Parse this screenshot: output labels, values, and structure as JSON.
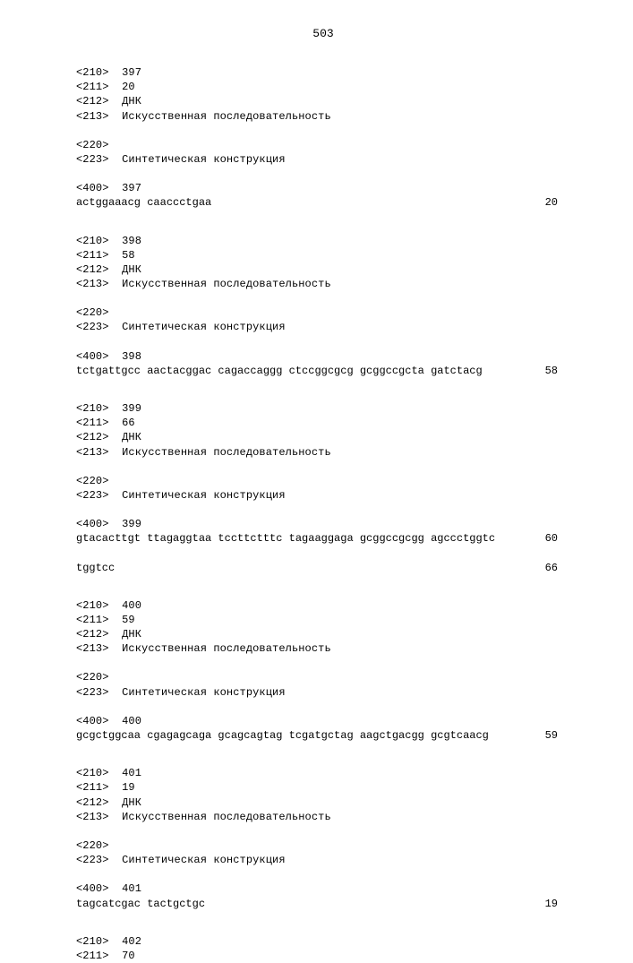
{
  "page_number": "503",
  "entries": [
    {
      "header": [
        {
          "tag": "<210>",
          "val": "397"
        },
        {
          "tag": "<211>",
          "val": "20"
        },
        {
          "tag": "<212>",
          "val": "ДНК"
        },
        {
          "tag": "<213>",
          "val": "Искусственная последовательность"
        }
      ],
      "feature": [
        {
          "tag": "<220>",
          "val": ""
        },
        {
          "tag": "<223>",
          "val": "Синтетическая конструкция"
        }
      ],
      "seq_tag": {
        "tag": "<400>",
        "val": "397"
      },
      "seq_lines": [
        {
          "text": "actggaaacg caaccctgaa",
          "num": "20"
        }
      ]
    },
    {
      "header": [
        {
          "tag": "<210>",
          "val": "398"
        },
        {
          "tag": "<211>",
          "val": "58"
        },
        {
          "tag": "<212>",
          "val": "ДНК"
        },
        {
          "tag": "<213>",
          "val": "Искусственная последовательность"
        }
      ],
      "feature": [
        {
          "tag": "<220>",
          "val": ""
        },
        {
          "tag": "<223>",
          "val": "Синтетическая конструкция"
        }
      ],
      "seq_tag": {
        "tag": "<400>",
        "val": "398"
      },
      "seq_lines": [
        {
          "text": "tctgattgcc aactacggac cagaccaggg ctccggcgcg gcggccgcta gatctacg",
          "num": "58"
        }
      ]
    },
    {
      "header": [
        {
          "tag": "<210>",
          "val": "399"
        },
        {
          "tag": "<211>",
          "val": "66"
        },
        {
          "tag": "<212>",
          "val": "ДНК"
        },
        {
          "tag": "<213>",
          "val": "Искусственная последовательность"
        }
      ],
      "feature": [
        {
          "tag": "<220>",
          "val": ""
        },
        {
          "tag": "<223>",
          "val": "Синтетическая конструкция"
        }
      ],
      "seq_tag": {
        "tag": "<400>",
        "val": "399"
      },
      "seq_lines": [
        {
          "text": "gtacacttgt ttagaggtaa tccttctttc tagaaggaga gcggccgcgg agccctggtc",
          "num": "60"
        },
        {
          "text": "tggtcc",
          "num": "66"
        }
      ]
    },
    {
      "header": [
        {
          "tag": "<210>",
          "val": "400"
        },
        {
          "tag": "<211>",
          "val": "59"
        },
        {
          "tag": "<212>",
          "val": "ДНК"
        },
        {
          "tag": "<213>",
          "val": "Искусственная последовательность"
        }
      ],
      "feature": [
        {
          "tag": "<220>",
          "val": ""
        },
        {
          "tag": "<223>",
          "val": "Синтетическая конструкция"
        }
      ],
      "seq_tag": {
        "tag": "<400>",
        "val": "400"
      },
      "seq_lines": [
        {
          "text": "gcgctggcaa cgagagcaga gcagcagtag tcgatgctag aagctgacgg gcgtcaacg",
          "num": "59"
        }
      ]
    },
    {
      "header": [
        {
          "tag": "<210>",
          "val": "401"
        },
        {
          "tag": "<211>",
          "val": "19"
        },
        {
          "tag": "<212>",
          "val": "ДНК"
        },
        {
          "tag": "<213>",
          "val": "Искусственная последовательность"
        }
      ],
      "feature": [
        {
          "tag": "<220>",
          "val": ""
        },
        {
          "tag": "<223>",
          "val": "Синтетическая конструкция"
        }
      ],
      "seq_tag": {
        "tag": "<400>",
        "val": "401"
      },
      "seq_lines": [
        {
          "text": "tagcatcgac tactgctgc",
          "num": "19"
        }
      ]
    },
    {
      "header": [
        {
          "tag": "<210>",
          "val": "402"
        },
        {
          "tag": "<211>",
          "val": "70"
        }
      ],
      "feature": [],
      "seq_tag": null,
      "seq_lines": []
    }
  ]
}
